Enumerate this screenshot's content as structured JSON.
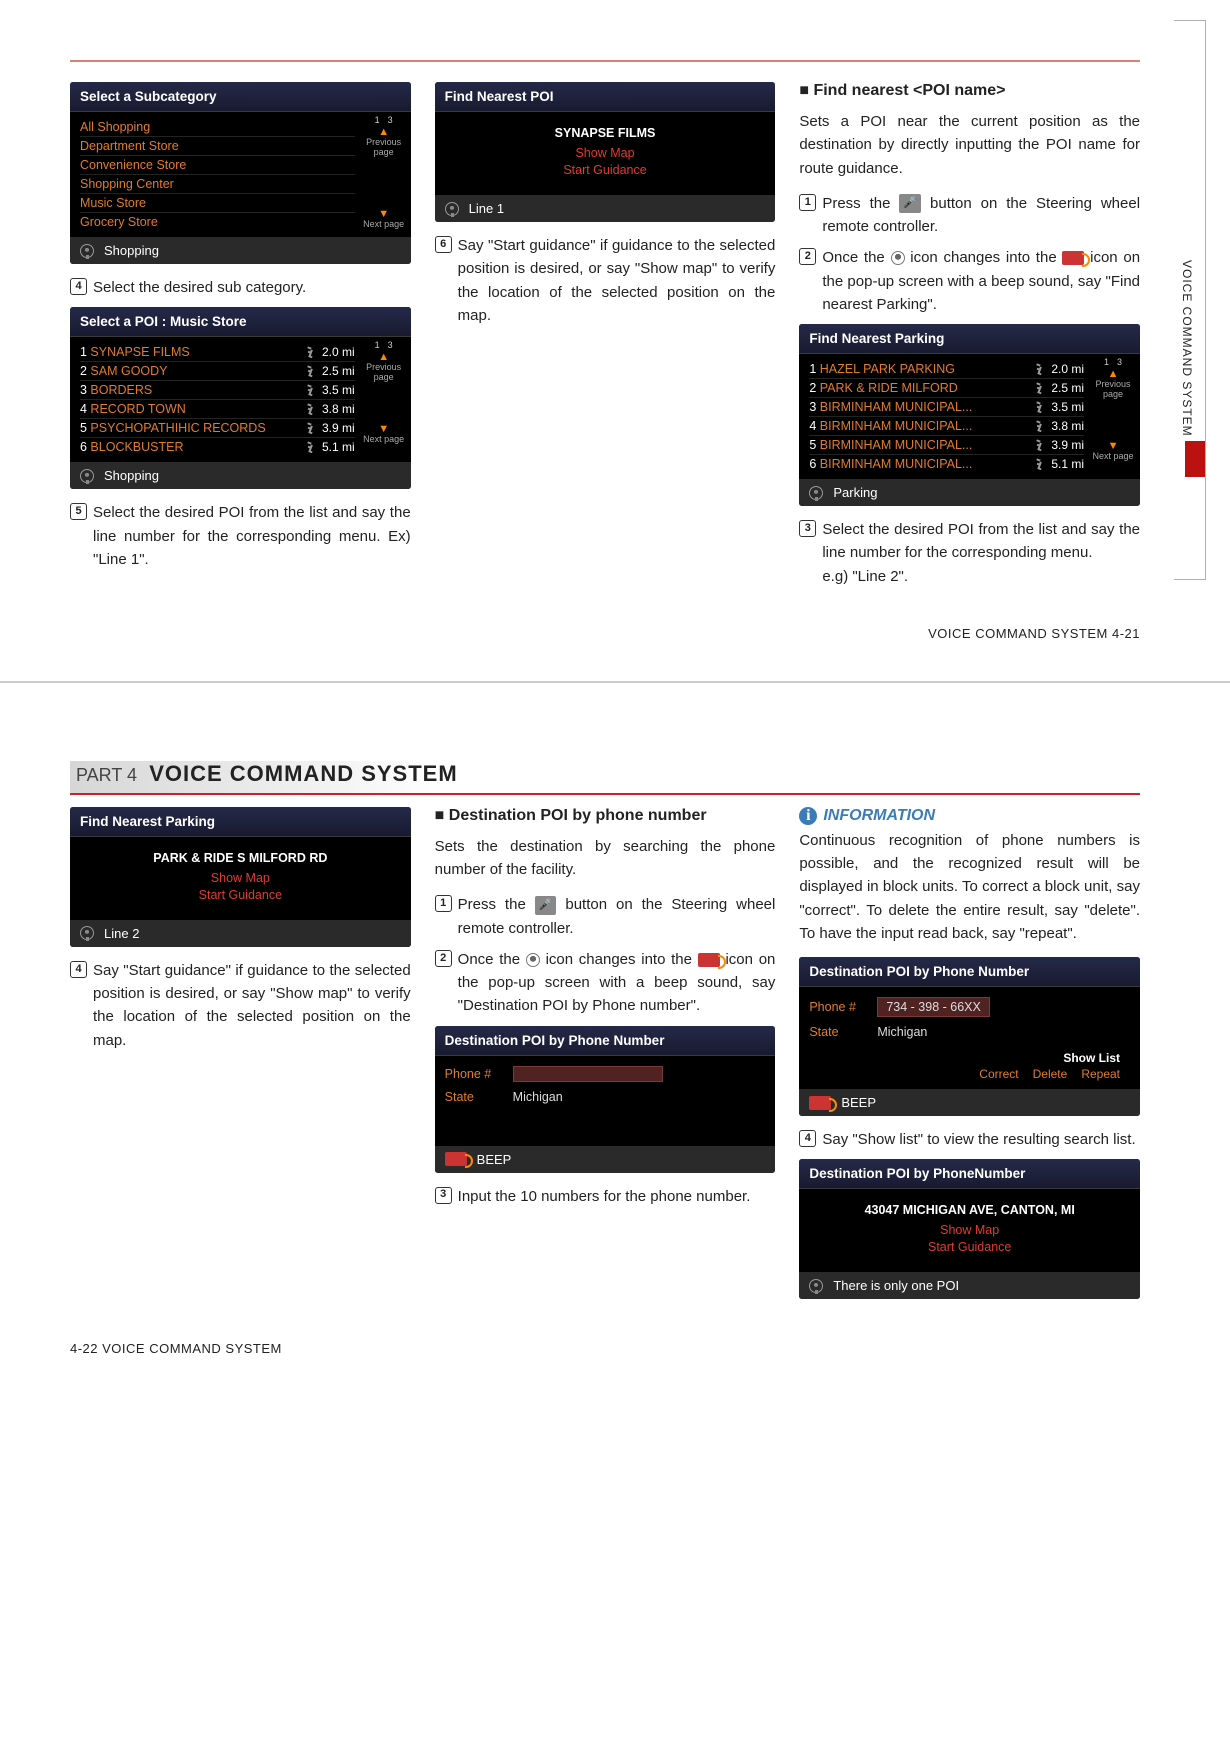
{
  "page1": {
    "sidebar_label": "VOICE COMMAND SYSTEM",
    "footer": "VOICE COMMAND SYSTEM   4-21",
    "col1": {
      "screen1": {
        "title": "Select a Subcategory",
        "items": [
          "All Shopping",
          "Department Store",
          "Convenience Store",
          "Shopping Center",
          "Music Store",
          "Grocery Store"
        ],
        "nav": {
          "pg": "1",
          "of": "3",
          "prev": "Previous page",
          "next": "Next page"
        },
        "footer": "Shopping"
      },
      "step4": "Select the desired sub category.",
      "screen2": {
        "title": "Select a POI : Music Store",
        "rows": [
          {
            "n": "1",
            "name": "SYNAPSE FILMS",
            "dist": "2.0 mi"
          },
          {
            "n": "2",
            "name": "SAM GOODY",
            "dist": "2.5 mi"
          },
          {
            "n": "3",
            "name": "BORDERS",
            "dist": "3.5 mi"
          },
          {
            "n": "4",
            "name": "RECORD TOWN",
            "dist": "3.8 mi"
          },
          {
            "n": "5",
            "name": "PSYCHOPATHIHIC RECORDS",
            "dist": "3.9 mi"
          },
          {
            "n": "6",
            "name": "BLOCKBUSTER",
            "dist": "5.1 mi"
          }
        ],
        "nav": {
          "pg": "1",
          "of": "3",
          "prev": "Previous page",
          "next": "Next page"
        },
        "footer": "Shopping"
      },
      "step5": "Select the desired POI from the list and say the line number for the corresponding menu. Ex) \"Line 1\"."
    },
    "col2": {
      "screen": {
        "title": "Find Nearest POI",
        "l1": "SYNAPSE FILMS",
        "l2": "Show Map",
        "l3": "Start Guidance",
        "footer": "Line 1"
      },
      "step6": "Say \"Start guidance\" if guidance to the selected position is desired, or say \"Show map\" to verify the location of the selected position on the map."
    },
    "col3": {
      "heading": "Find nearest <POI name>",
      "intro": "Sets a POI near the current position as the destination by directly inputting the POI name for route guidance.",
      "step1a": "Press the ",
      "step1b": " button on the Steering wheel remote controller.",
      "step2a": "Once the ",
      "step2b": " icon changes into the ",
      "step2c": " icon on the pop-up screen with a beep sound, say \"Find nearest Parking\".",
      "screen": {
        "title": "Find Nearest Parking",
        "rows": [
          {
            "n": "1",
            "name": "HAZEL PARK PARKING",
            "dist": "2.0 mi"
          },
          {
            "n": "2",
            "name": "PARK & RIDE MILFORD",
            "dist": "2.5 mi"
          },
          {
            "n": "3",
            "name": "BIRMINHAM MUNICIPAL...",
            "dist": "3.5 mi"
          },
          {
            "n": "4",
            "name": "BIRMINHAM MUNICIPAL...",
            "dist": "3.8 mi"
          },
          {
            "n": "5",
            "name": "BIRMINHAM MUNICIPAL...",
            "dist": "3.9 mi"
          },
          {
            "n": "6",
            "name": "BIRMINHAM MUNICIPAL...",
            "dist": "5.1 mi"
          }
        ],
        "nav": {
          "pg": "1",
          "of": "3",
          "prev": "Previous page",
          "next": "Next page"
        },
        "footer": "Parking"
      },
      "step3": "Select the desired POI from the list and say the line number for the corresponding menu.",
      "step3eg": "e.g) \"Line 2\"."
    }
  },
  "page2": {
    "part": "PART 4",
    "title": "VOICE COMMAND SYSTEM",
    "footer": "4-22  VOICE COMMAND SYSTEM",
    "col1": {
      "screen": {
        "title": "Find Nearest Parking",
        "l1": "PARK & RIDE S MILFORD RD",
        "l2": "Show Map",
        "l3": "Start Guidance",
        "footer": "Line 2"
      },
      "step4": "Say \"Start guidance\" if guidance to the selected position is desired, or say \"Show map\" to verify the location of the selected position on the map."
    },
    "col2": {
      "heading": "Destination POI by phone number",
      "intro": "Sets the destination by searching the phone number of the facility.",
      "step1a": "Press the ",
      "step1b": " button on the Steering wheel remote controller.",
      "step2a": "Once the ",
      "step2b": " icon changes into the ",
      "step2c": " icon on the pop-up screen with a beep sound, say \"Destination POI by Phone number\".",
      "screen": {
        "title": "Destination POI by Phone Number",
        "phone_k": "Phone #",
        "phone_v": "",
        "state_k": "State",
        "state_v": "Michigan",
        "footer": "BEEP"
      },
      "step3": "Input the 10 numbers for the phone number."
    },
    "col3": {
      "info_hd": "INFORMATION",
      "info_body": "Continuous recognition of phone numbers is possible, and the recognized result will be displayed in block units. To correct a block unit, say \"correct\". To delete the entire result, say \"delete\". To have the input read back, say \"repeat\".",
      "screen1": {
        "title": "Destination POI by Phone Number",
        "phone_k": "Phone #",
        "phone_v": "734 - 398 - 66XX",
        "state_k": "State",
        "state_v": "Michigan",
        "btns": {
          "show": "Show List",
          "correct": "Correct",
          "delete": "Delete",
          "repeat": "Repeat"
        },
        "footer": "BEEP"
      },
      "step4": "Say \"Show list\" to view the resulting search list.",
      "screen2": {
        "title": "Destination POI by PhoneNumber",
        "l1": "43047 MICHIGAN AVE, CANTON, MI",
        "l2": "Show Map",
        "l3": "Start Guidance",
        "footer": "There is only one POI"
      }
    }
  }
}
